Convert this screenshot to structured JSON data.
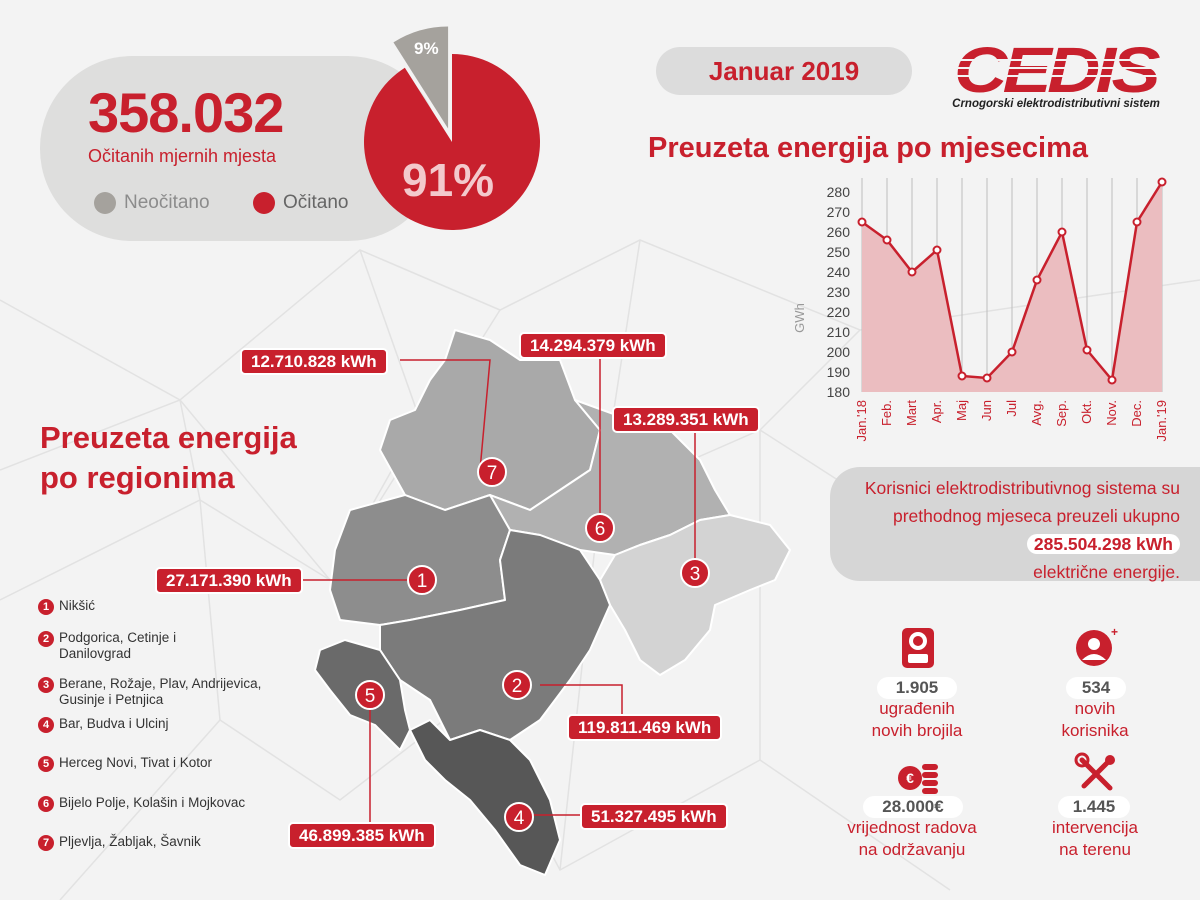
{
  "header": {
    "reading_count": "358.032",
    "reading_label": "Očitanih mjernih mjesta",
    "legend_unread": "Neočitano",
    "legend_read": "Očitano",
    "pct_unread": "9%",
    "pct_read": "91%",
    "date": "Januar 2019",
    "logo_text": "CEDIS",
    "logo_tagline": "Crnogorski elektrodistributivni sistem"
  },
  "colors": {
    "accent": "#c8202d",
    "grey": "#a5a29d",
    "area": "#ebbdc0"
  },
  "chart_data": [
    {
      "type": "pie",
      "labels": [
        "Neočitano",
        "Očitano"
      ],
      "values": [
        9,
        91
      ]
    },
    {
      "type": "area",
      "title": "Preuzeta energija po mjesecima",
      "ylabel": "GWh",
      "x": [
        "Jan.'18",
        "Feb.",
        "Mart",
        "Apr.",
        "Maj",
        "Jun",
        "Jul",
        "Avg.",
        "Sep.",
        "Okt.",
        "Nov.",
        "Dec.",
        "Jan.'19"
      ],
      "values": [
        265,
        256,
        240,
        251,
        188,
        187,
        200,
        236,
        260,
        201,
        186,
        265,
        285
      ],
      "ylim": [
        180,
        285
      ],
      "yticks": [
        180,
        190,
        200,
        210,
        220,
        230,
        240,
        250,
        260,
        270,
        280
      ],
      "grid": "vertical"
    }
  ],
  "summary": {
    "text_before": "Korisnici elektrodistributivnog sistema su prethodnog mjeseca preuzeli ukupno",
    "value": "285.504.298 kWh",
    "text_after": "električne energije."
  },
  "regions_title_line1": "Preuzeta energija",
  "regions_title_line2": "po regionima",
  "regions": [
    {
      "num": "1",
      "kwh": "27.171.390 kWh",
      "name": "Nikšić"
    },
    {
      "num": "2",
      "kwh": "119.811.469 kWh",
      "name": "Podgorica, Cetinje i Danilovgrad"
    },
    {
      "num": "3",
      "kwh": "13.289.351 kWh",
      "name": "Berane, Rožaje, Plav, Andrijevica, Gusinje i Petnjica"
    },
    {
      "num": "4",
      "kwh": "51.327.495 kWh",
      "name": "Bar, Budva i Ulcinj"
    },
    {
      "num": "5",
      "kwh": "46.899.385 kWh",
      "name": "Herceg Novi, Tivat i Kotor"
    },
    {
      "num": "6",
      "kwh": "14.294.379 kWh",
      "name": "Bijelo Polje, Kolašin i Mojkovac"
    },
    {
      "num": "7",
      "kwh": "12.710.828 kWh",
      "name": "Pljevlja, Žabljak, Šavnik"
    }
  ],
  "stats": [
    {
      "icon": "meter-icon",
      "value": "1.905",
      "label1": "ugrađenih",
      "label2": "novih brojila"
    },
    {
      "icon": "new-user-icon",
      "value": "534",
      "label1": "novih",
      "label2": "korisnika"
    },
    {
      "icon": "coins-icon",
      "value": "28.000€",
      "label1": "vrijednost radova",
      "label2": "na održavanju"
    },
    {
      "icon": "tools-icon",
      "value": "1.445",
      "label1": "intervencija",
      "label2": "na terenu"
    }
  ]
}
